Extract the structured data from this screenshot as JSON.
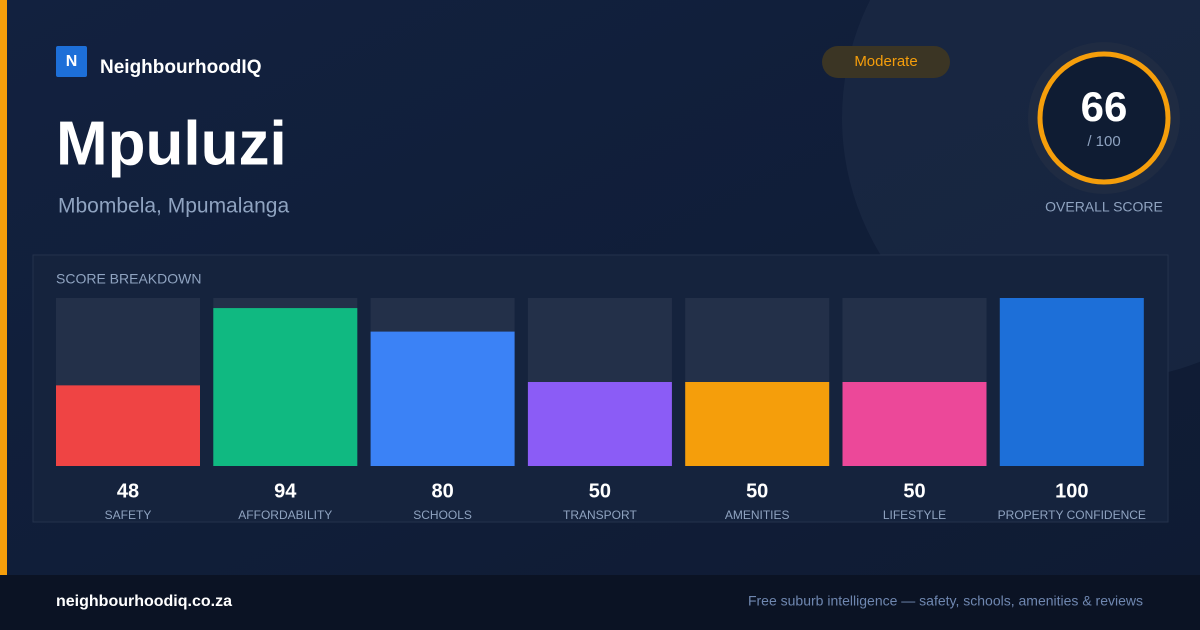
{
  "brand": {
    "logo": "N",
    "name": "NeighbourhoodIQ"
  },
  "header": {
    "title": "Mpuluzi",
    "subtitle": "Mbombela, Mpumalanga",
    "badge": "Moderate"
  },
  "score": {
    "value": 66,
    "suffix": "/ 100",
    "label": "OVERALL SCORE"
  },
  "chart_data": {
    "type": "bar",
    "title": "SCORE BREAKDOWN",
    "categories": [
      "SAFETY",
      "AFFORDABILITY",
      "SCHOOLS",
      "TRANSPORT",
      "AMENITIES",
      "LIFESTYLE",
      "PROPERTY CONFIDENCE"
    ],
    "values": [
      48,
      94,
      80,
      50,
      50,
      50,
      100
    ],
    "colors": [
      "#ef4444",
      "#10b981",
      "#3b82f6",
      "#8b5cf6",
      "#f59e0b",
      "#ec4899",
      "#1d6fd8"
    ],
    "ylim": [
      0,
      100
    ]
  },
  "footer": {
    "site": "neighbourhoodiq.co.za",
    "tagline": "Free suburb intelligence — safety, schools, amenities & reviews"
  }
}
